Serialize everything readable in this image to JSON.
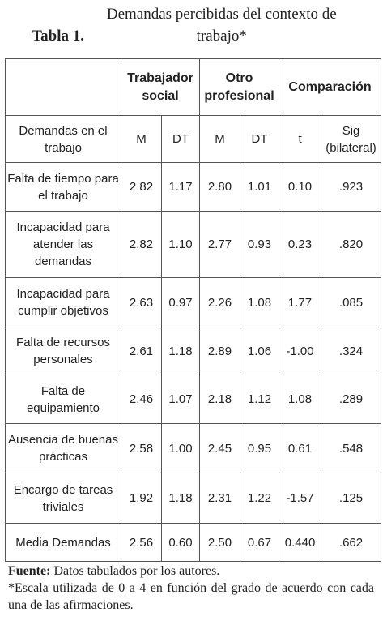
{
  "title": {
    "label": "Tabla 1.",
    "text": "Demandas percibidas del contexto de trabajo*"
  },
  "table": {
    "group_headers": [
      "",
      "Trabajador social",
      "Otro profesional",
      "Comparación"
    ],
    "column_headers": [
      "Demandas en el trabajo",
      "M",
      "DT",
      "M",
      "DT",
      "t",
      "Sig (bilateral)"
    ],
    "rows": [
      [
        "Falta de tiempo para el trabajo",
        "2.82",
        "1.17",
        "2.80",
        "1.01",
        "0.10",
        ".923"
      ],
      [
        "Incapacidad para atender las demandas",
        "2.82",
        "1.10",
        "2.77",
        "0.93",
        "0.23",
        ".820"
      ],
      [
        "Incapacidad para cumplir objetivos",
        "2.63",
        "0.97",
        "2.26",
        "1.08",
        "1.77",
        ".085"
      ],
      [
        "Falta de recursos personales",
        "2.61",
        "1.18",
        "2.89",
        "1.06",
        "-1.00",
        ".324"
      ],
      [
        "Falta de equipamiento",
        "2.46",
        "1.07",
        "2.18",
        "1.12",
        "1.08",
        ".289"
      ],
      [
        "Ausencia de buenas prácticas",
        "2.58",
        "1.00",
        "2.45",
        "0.95",
        "0.61",
        ".548"
      ],
      [
        "Encargo de tareas triviales",
        "1.92",
        "1.18",
        "2.31",
        "1.22",
        "-1.57",
        ".125"
      ],
      [
        "Media Demandas",
        "2.56",
        "0.60",
        "2.50",
        "0.67",
        "0.440",
        ".662"
      ]
    ]
  },
  "footer": {
    "source_label": "Fuente:",
    "source_text": "Datos tabulados por los autores.",
    "note": "*Escala utilizada de 0 a 4 en función del grado de acuerdo con cada una de las afirmaciones."
  }
}
